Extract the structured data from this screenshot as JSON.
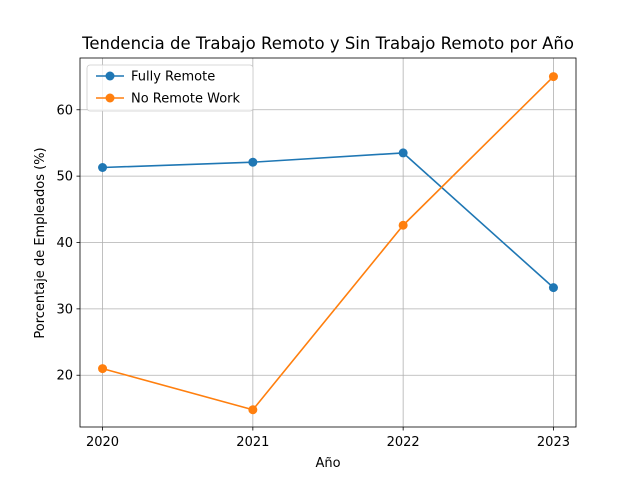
{
  "chart_data": {
    "type": "line",
    "title": "Tendencia de Trabajo Remoto y Sin Trabajo Remoto por Año",
    "xlabel": "Año",
    "ylabel": "Porcentaje de Empleados (%)",
    "categories": [
      "2020",
      "2021",
      "2022",
      "2023"
    ],
    "x": [
      2020,
      2021,
      2022,
      2023
    ],
    "yticks": [
      20,
      30,
      40,
      50,
      60
    ],
    "ylim": [
      12.2,
      67.8
    ],
    "xlim": [
      2019.85,
      2023.15
    ],
    "grid": true,
    "legend": "top-left",
    "series": [
      {
        "name": "Fully Remote",
        "color": "#1f77b4",
        "values": [
          51.3,
          52.1,
          53.5,
          33.2
        ]
      },
      {
        "name": "No Remote Work",
        "color": "#ff7f0e",
        "values": [
          21.0,
          14.8,
          42.6,
          65.0
        ]
      }
    ]
  }
}
